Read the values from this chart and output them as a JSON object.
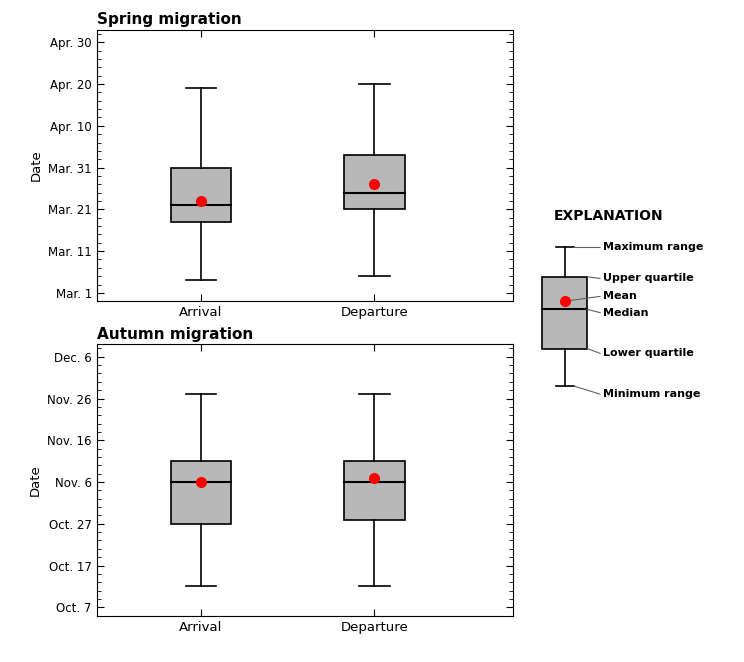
{
  "spring": {
    "arrival": {
      "min": 3,
      "q1": 17,
      "median": 21,
      "mean": 22,
      "q3": 30,
      "max": 49
    },
    "departure": {
      "min": 4,
      "q1": 20,
      "median": 24,
      "mean": 26,
      "q3": 33,
      "max": 50
    }
  },
  "autumn": {
    "arrival": {
      "min": 5,
      "q1": 20,
      "median": 30,
      "mean": 30,
      "q3": 35,
      "max": 51
    },
    "departure": {
      "min": 5,
      "q1": 21,
      "median": 30,
      "mean": 31,
      "q3": 35,
      "max": 51
    }
  },
  "spring_yticks": [
    0,
    10,
    20,
    30,
    40,
    50,
    60
  ],
  "spring_ylabels": [
    "Mar. 1",
    "Mar. 11",
    "Mar. 21",
    "Mar. 31",
    "Apr. 10",
    "Apr. 20",
    "Apr. 30"
  ],
  "autumn_yticks": [
    0,
    10,
    20,
    30,
    40,
    50,
    60
  ],
  "autumn_ylabels": [
    "Oct. 7",
    "Oct. 17",
    "Oct. 27",
    "Nov. 6",
    "Nov. 16",
    "Nov. 26",
    "Dec. 6"
  ],
  "box_color": "#b8b8b8",
  "mean_color": "#ff0000",
  "line_color": "#000000",
  "bg_color": "#ffffff"
}
